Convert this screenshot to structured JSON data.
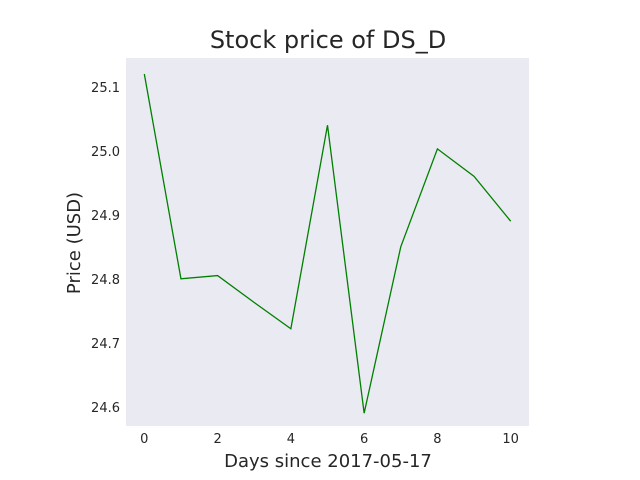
{
  "chart_data": {
    "type": "line",
    "title": "Stock price of DS_D",
    "xlabel": "Days since 2017-05-17",
    "ylabel": "Price (USD)",
    "x": [
      0,
      1,
      2,
      3,
      4,
      5,
      6,
      7,
      8,
      9,
      10
    ],
    "series": [
      {
        "values": [
          25.12,
          24.8,
          24.805,
          24.763,
          24.722,
          25.04,
          24.59,
          24.85,
          25.003,
          24.96,
          24.89
        ]
      }
    ],
    "xticks": [
      "0",
      "2",
      "4",
      "6",
      "8",
      "10"
    ],
    "yticks": [
      "24.6",
      "24.7",
      "24.8",
      "24.9",
      "25.0",
      "25.1"
    ],
    "xlim": [
      -0.5,
      10.5
    ],
    "ylim": [
      24.57,
      25.145
    ],
    "grid": false,
    "line_color": "#008000",
    "plot_background": "#eaeaf2"
  }
}
